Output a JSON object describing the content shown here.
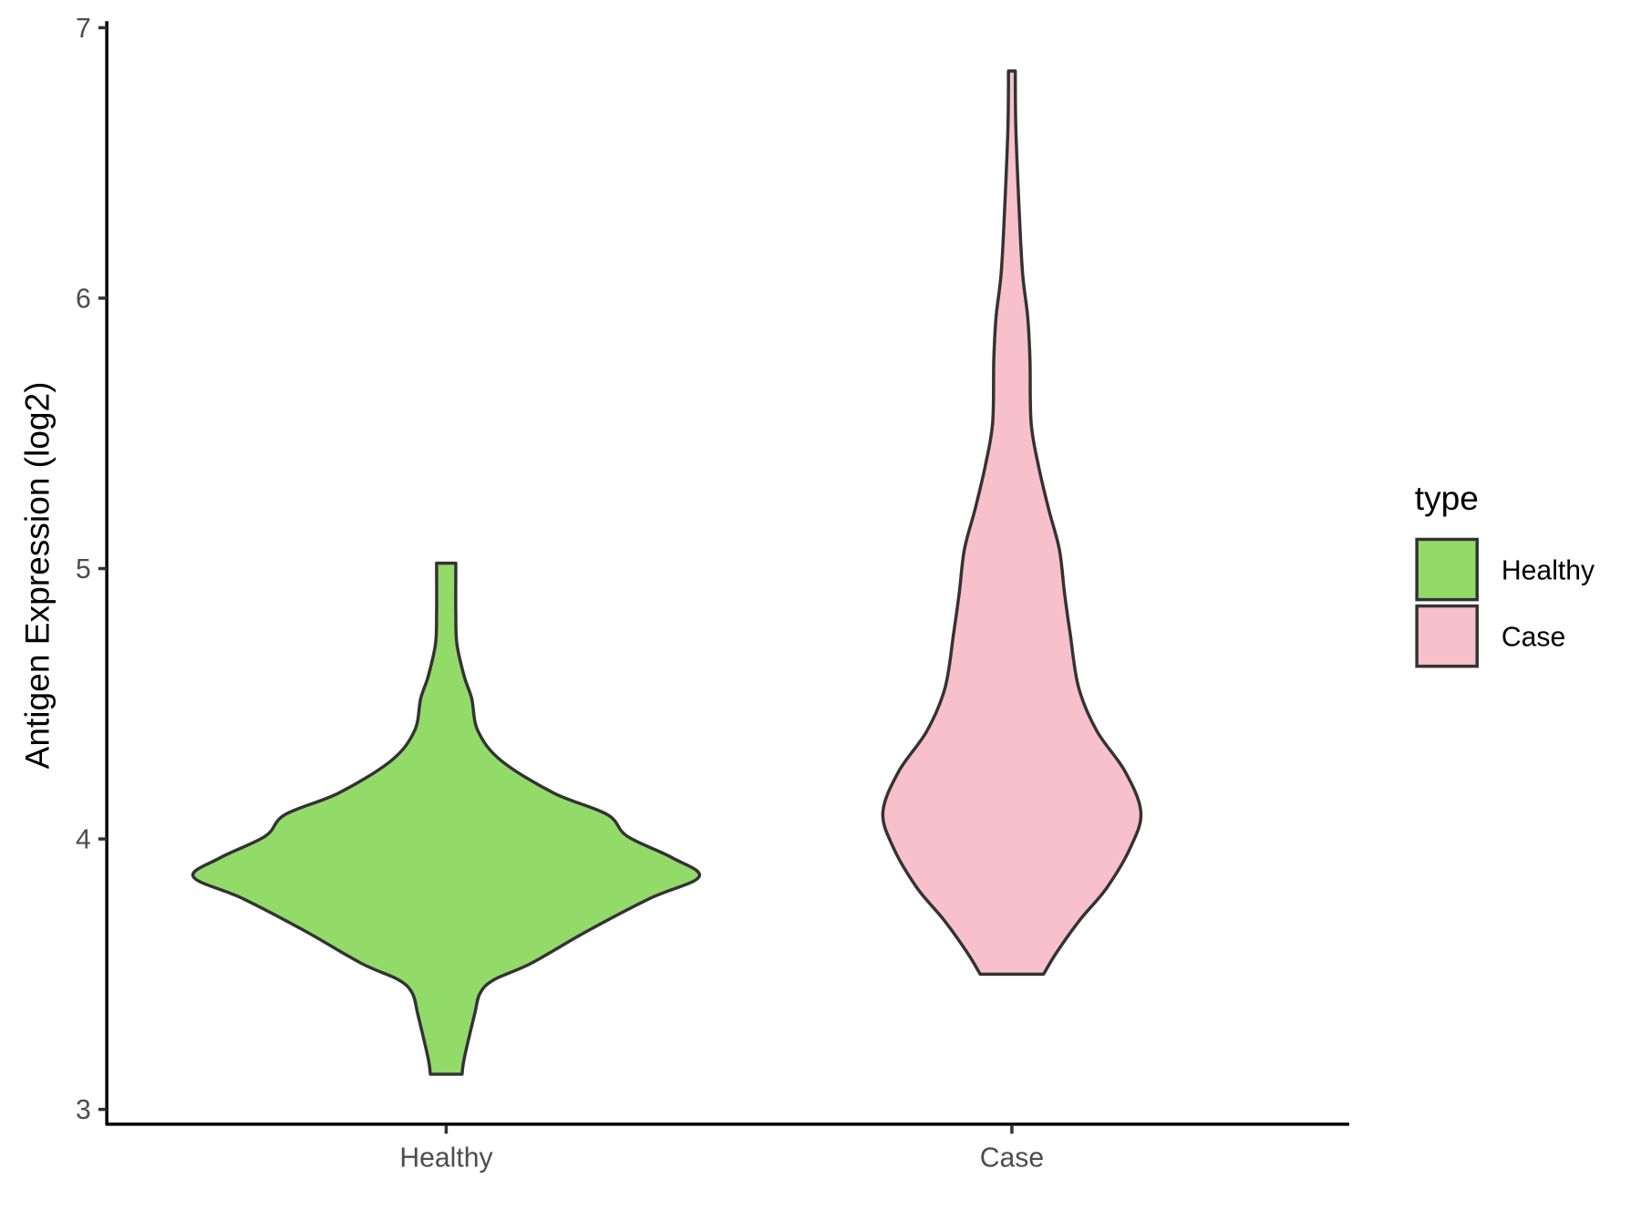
{
  "chart_data": {
    "type": "violin",
    "title": "",
    "xlabel": "",
    "ylabel": "Antigen Expression (log2)",
    "ylim": [
      2.95,
      7.02
    ],
    "yticks": [
      3,
      4,
      5,
      6,
      7
    ],
    "categories": [
      "Healthy",
      "Case"
    ],
    "grid": false,
    "legend": {
      "title": "type",
      "placement": "right",
      "entries": [
        "Healthy",
        "Case"
      ]
    },
    "series": [
      {
        "name": "Healthy",
        "color": "#93DB69",
        "profile": [
          [
            3.13,
            0.028
          ],
          [
            3.19,
            0.032
          ],
          [
            3.35,
            0.05
          ],
          [
            3.43,
            0.06
          ],
          [
            3.48,
            0.085
          ],
          [
            3.54,
            0.15
          ],
          [
            3.66,
            0.25
          ],
          [
            3.78,
            0.36
          ],
          [
            3.86,
            0.447
          ],
          [
            3.93,
            0.4
          ],
          [
            4.01,
            0.32
          ],
          [
            4.09,
            0.285
          ],
          [
            4.17,
            0.19
          ],
          [
            4.29,
            0.097
          ],
          [
            4.4,
            0.056
          ],
          [
            4.52,
            0.045
          ],
          [
            4.6,
            0.032
          ],
          [
            4.72,
            0.019
          ],
          [
            4.83,
            0.017
          ],
          [
            5.02,
            0.017
          ]
        ]
      },
      {
        "name": "Case",
        "color": "#F8C0CB",
        "profile": [
          [
            3.5,
            0.056
          ],
          [
            3.58,
            0.079
          ],
          [
            3.7,
            0.12
          ],
          [
            3.82,
            0.168
          ],
          [
            3.97,
            0.21
          ],
          [
            4.1,
            0.228
          ],
          [
            4.25,
            0.2
          ],
          [
            4.4,
            0.15
          ],
          [
            4.56,
            0.118
          ],
          [
            4.76,
            0.103
          ],
          [
            4.91,
            0.093
          ],
          [
            5.07,
            0.084
          ],
          [
            5.22,
            0.065
          ],
          [
            5.38,
            0.047
          ],
          [
            5.54,
            0.034
          ],
          [
            5.77,
            0.032
          ],
          [
            5.93,
            0.028
          ],
          [
            6.09,
            0.019
          ],
          [
            6.32,
            0.013
          ],
          [
            6.63,
            0.007
          ],
          [
            6.84,
            0.006
          ]
        ]
      }
    ],
    "outline_color": "#333333"
  }
}
